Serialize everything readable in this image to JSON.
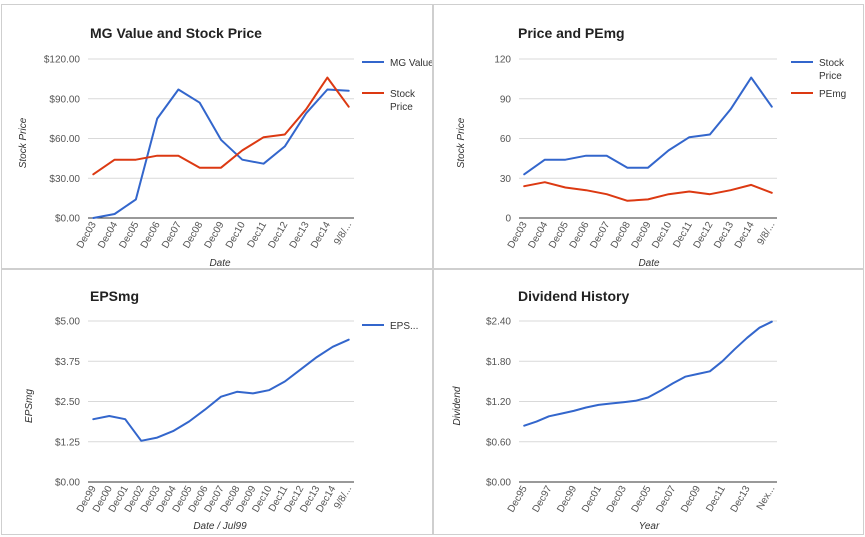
{
  "chart_data": [
    {
      "type": "line",
      "title": "MG Value and Stock Price",
      "xlabel": "Date",
      "ylabel": "Stock Price",
      "categories": [
        "Dec03",
        "Dec04",
        "Dec05",
        "Dec06",
        "Dec07",
        "Dec08",
        "Dec09",
        "Dec10",
        "Dec11",
        "Dec12",
        "Dec13",
        "Dec14",
        "9/8/..."
      ],
      "yticks": [
        "$0.00",
        "$30.00",
        "$60.00",
        "$90.00",
        "$120.00"
      ],
      "ylim": [
        0,
        120
      ],
      "legend_position": "right",
      "series": [
        {
          "name": "MG Value",
          "color": "#3366cc",
          "values": [
            0,
            3,
            14,
            75,
            97,
            87,
            59,
            44,
            41,
            54,
            79,
            97,
            96
          ]
        },
        {
          "name": "Stock Price",
          "color": "#dc3912",
          "values": [
            33,
            44,
            44,
            47,
            47,
            38,
            38,
            51,
            61,
            63,
            82,
            106,
            84
          ]
        }
      ]
    },
    {
      "type": "line",
      "title": "Price and PEmg",
      "xlabel": "Date",
      "ylabel": "Stock Price",
      "categories": [
        "Dec03",
        "Dec04",
        "Dec05",
        "Dec06",
        "Dec07",
        "Dec08",
        "Dec09",
        "Dec10",
        "Dec11",
        "Dec12",
        "Dec13",
        "Dec14",
        "9/8/..."
      ],
      "yticks": [
        "0",
        "30",
        "60",
        "90",
        "120"
      ],
      "ylim": [
        0,
        120
      ],
      "legend_position": "right",
      "series": [
        {
          "name": "Stock Price",
          "color": "#3366cc",
          "values": [
            33,
            44,
            44,
            47,
            47,
            38,
            38,
            51,
            61,
            63,
            82,
            106,
            84
          ]
        },
        {
          "name": "PEmg",
          "color": "#dc3912",
          "values": [
            24,
            27,
            23,
            21,
            18,
            13,
            14,
            18,
            20,
            18,
            21,
            25,
            19
          ]
        }
      ]
    },
    {
      "type": "line",
      "title": "EPSmg",
      "xlabel": "Date / Jul99",
      "ylabel": "EPSmg",
      "categories": [
        "Dec99",
        "Dec00",
        "Dec01",
        "Dec02",
        "Dec03",
        "Dec04",
        "Dec05",
        "Dec06",
        "Dec07",
        "Dec08",
        "Dec09",
        "Dec10",
        "Dec11",
        "Dec12",
        "Dec13",
        "Dec14",
        "9/8/..."
      ],
      "yticks": [
        "$0.00",
        "$1.25",
        "$2.50",
        "$3.75",
        "$5.00"
      ],
      "ylim": [
        0,
        5
      ],
      "legend_position": "right",
      "series": [
        {
          "name": "EPS...",
          "color": "#3366cc",
          "values": [
            1.95,
            2.05,
            1.95,
            1.28,
            1.38,
            1.58,
            1.88,
            2.25,
            2.65,
            2.8,
            2.75,
            2.85,
            3.12,
            3.5,
            3.88,
            4.2,
            4.42
          ]
        }
      ]
    },
    {
      "type": "line",
      "title": "Dividend History",
      "xlabel": "Year",
      "ylabel": "Dividend",
      "categories": [
        "Dec95",
        "Dec96",
        "Dec97",
        "Dec98",
        "Dec99",
        "Dec00",
        "Dec01",
        "Dec02",
        "Dec03",
        "Dec04",
        "Dec05",
        "Dec06",
        "Dec07",
        "Dec08",
        "Dec09",
        "Dec10",
        "Dec11",
        "Dec12",
        "Dec13",
        "Dec14",
        "Nex..."
      ],
      "tick_labels": [
        "Dec95",
        "Dec97",
        "Dec99",
        "Dec01",
        "Dec03",
        "Dec05",
        "Dec07",
        "Dec09",
        "Dec11",
        "Dec13",
        "Nex..."
      ],
      "yticks": [
        "$0.00",
        "$0.60",
        "$1.20",
        "$1.80",
        "$2.40"
      ],
      "ylim": [
        0,
        2.4
      ],
      "legend_position": "none",
      "series": [
        {
          "name": "",
          "color": "#3366cc",
          "values": [
            0.84,
            0.9,
            0.98,
            1.02,
            1.06,
            1.11,
            1.15,
            1.17,
            1.19,
            1.21,
            1.26,
            1.36,
            1.47,
            1.57,
            1.61,
            1.65,
            1.8,
            1.98,
            2.15,
            2.3,
            2.39
          ]
        }
      ]
    }
  ]
}
